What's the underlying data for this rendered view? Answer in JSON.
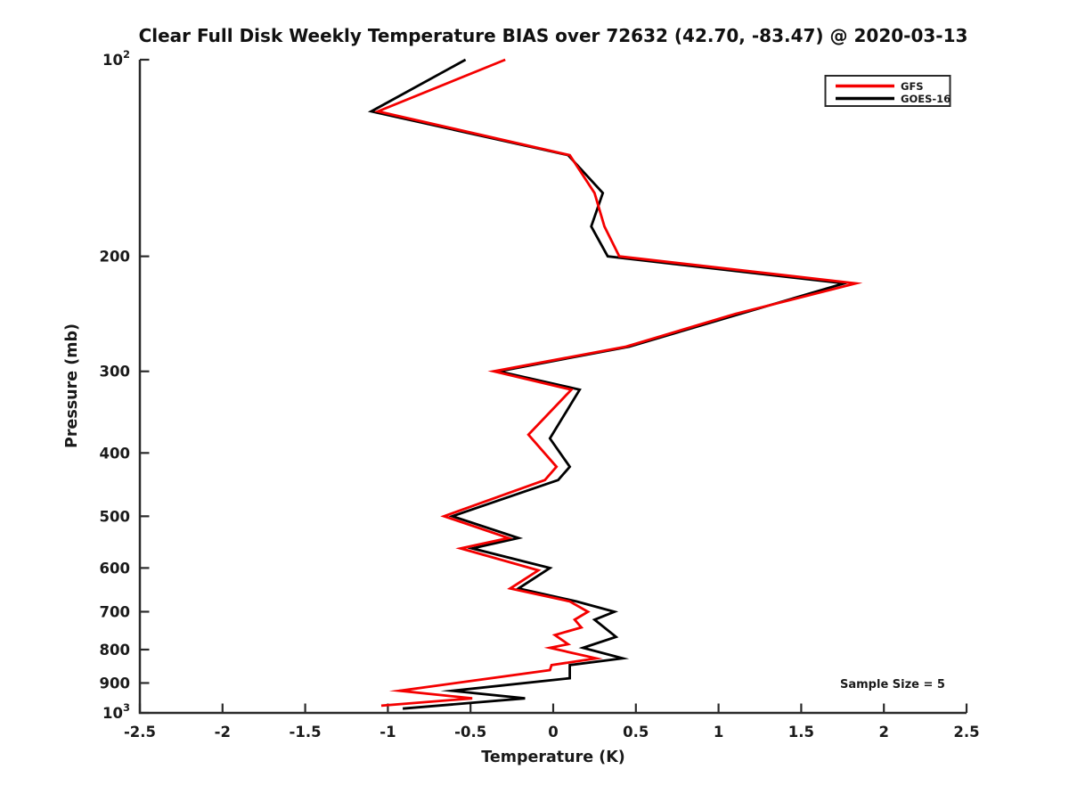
{
  "title": "Clear Full Disk Weekly Temperature BIAS over 72632 (42.70, -83.47) @ 2020-03-13",
  "annotations": {
    "sample_size": "Sample Size = 5"
  },
  "legend": {
    "items": [
      {
        "label": "GFS",
        "color": "#f40000"
      },
      {
        "label": "GOES-16",
        "color": "#000000"
      }
    ]
  },
  "chart_data": {
    "type": "line",
    "title": "Clear Full Disk Weekly Temperature BIAS over 72632 (42.70, -83.47) @ 2020-03-13",
    "xlabel": "Temperature (K)",
    "ylabel": "Pressure (mb)",
    "xlim": [
      -2.5,
      2.5
    ],
    "ylim": [
      100,
      1000
    ],
    "yscale": "log",
    "y_inverted": true,
    "grid": false,
    "legend_position": "upper right",
    "xticks": [
      -2.5,
      -2,
      -1.5,
      -1,
      -0.5,
      0,
      0.5,
      1,
      1.5,
      2,
      2.5
    ],
    "xtick_labels": [
      "-2.5",
      "-2",
      "-1.5",
      "-1",
      "-0.5",
      "0",
      "0.5",
      "1",
      "1.5",
      "2",
      "2.5"
    ],
    "yticks": [
      100,
      200,
      300,
      400,
      500,
      600,
      700,
      800,
      900,
      1000
    ],
    "ytick_labels": [
      "10^2",
      "200",
      "300",
      "400",
      "500",
      "600",
      "700",
      "800",
      "900",
      "10^3"
    ],
    "points_format": "[pressure_mb, temperature_bias_K]",
    "series": [
      {
        "name": "GOES-16",
        "color": "#000000",
        "points": [
          [
            100,
            -0.53
          ],
          [
            120,
            -1.1
          ],
          [
            140,
            0.09
          ],
          [
            160,
            0.3
          ],
          [
            180,
            0.23
          ],
          [
            200,
            0.33
          ],
          [
            220,
            1.76
          ],
          [
            245,
            1.13
          ],
          [
            275,
            0.46
          ],
          [
            300,
            -0.33
          ],
          [
            320,
            0.16
          ],
          [
            380,
            -0.02
          ],
          [
            420,
            0.1
          ],
          [
            440,
            0.03
          ],
          [
            500,
            -0.61
          ],
          [
            540,
            -0.21
          ],
          [
            560,
            -0.49
          ],
          [
            600,
            -0.02
          ],
          [
            645,
            -0.21
          ],
          [
            675,
            0.14
          ],
          [
            700,
            0.37
          ],
          [
            720,
            0.25
          ],
          [
            765,
            0.38
          ],
          [
            795,
            0.18
          ],
          [
            825,
            0.42
          ],
          [
            845,
            0.1
          ],
          [
            885,
            0.1
          ],
          [
            925,
            -0.61
          ],
          [
            950,
            -0.17
          ],
          [
            985,
            -0.91
          ]
        ]
      },
      {
        "name": "GFS",
        "color": "#f40000",
        "points": [
          [
            100,
            -0.29
          ],
          [
            120,
            -1.06
          ],
          [
            140,
            0.1
          ],
          [
            160,
            0.25
          ],
          [
            180,
            0.31
          ],
          [
            200,
            0.4
          ],
          [
            220,
            1.83
          ],
          [
            245,
            1.1
          ],
          [
            275,
            0.44
          ],
          [
            300,
            -0.36
          ],
          [
            320,
            0.11
          ],
          [
            375,
            -0.15
          ],
          [
            420,
            0.02
          ],
          [
            440,
            -0.05
          ],
          [
            500,
            -0.66
          ],
          [
            540,
            -0.27
          ],
          [
            560,
            -0.56
          ],
          [
            605,
            -0.09
          ],
          [
            645,
            -0.26
          ],
          [
            675,
            0.1
          ],
          [
            700,
            0.21
          ],
          [
            720,
            0.13
          ],
          [
            740,
            0.17
          ],
          [
            760,
            0.01
          ],
          [
            785,
            0.09
          ],
          [
            795,
            -0.02
          ],
          [
            825,
            0.26
          ],
          [
            845,
            -0.01
          ],
          [
            860,
            -0.02
          ],
          [
            925,
            -0.93
          ],
          [
            950,
            -0.49
          ],
          [
            975,
            -1.04
          ]
        ]
      }
    ]
  }
}
